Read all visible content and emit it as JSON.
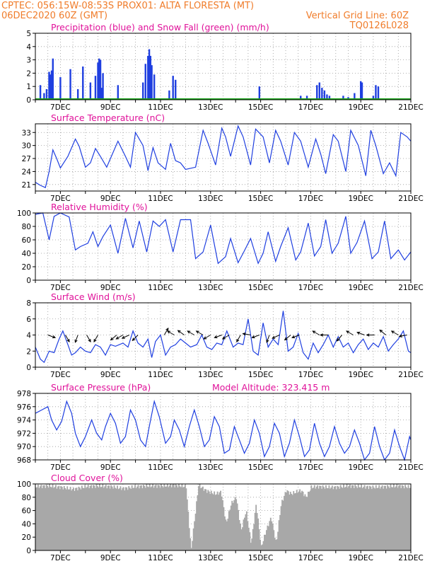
{
  "header": {
    "line1_left": "CPTEC:   056:15W-08:53S   PROX01: ALTA FLORESTA (MT)",
    "line2_left": "06DEC2020 60Z (GMT)",
    "line2_right": "Vertical Grid Line: 60Z",
    "line3_right": "TQ0126L028"
  },
  "colors": {
    "header": "#f07c2a",
    "title": "#e0129a",
    "series": "#1f3fe0",
    "snow": "#1aa31a",
    "cloud": "#a8a8a8",
    "grid": "#9a9a9a"
  },
  "x_ticks": [
    "7DEC",
    "9DEC",
    "11DEC",
    "13DEC",
    "15DEC",
    "17DEC",
    "19DEC",
    "21DEC"
  ],
  "chart_data": [
    {
      "id": "precip",
      "type": "bar",
      "title": "Precipitation (blue) and Snow Fall (green) (mm/h)",
      "ylim": [
        0,
        5
      ],
      "yticks": [
        "0",
        "1",
        "2",
        "3",
        "4",
        "5"
      ],
      "grid": true,
      "x_days": [
        6.2,
        6.35,
        6.45,
        6.55,
        6.6,
        6.65,
        6.7,
        7.0,
        7.4,
        7.7,
        7.9,
        8.2,
        8.4,
        8.5,
        8.55,
        8.6,
        8.65,
        8.7,
        9.3,
        10.3,
        10.4,
        10.5,
        10.55,
        10.6,
        10.65,
        10.75,
        11.35,
        11.5,
        11.6,
        14.95,
        16.6,
        16.85,
        17.25,
        17.35,
        17.45,
        17.55,
        17.65,
        17.75,
        18.3,
        18.5,
        18.75,
        19.0,
        19.05,
        19.5,
        19.6,
        19.7
      ],
      "values": [
        1.1,
        0.5,
        0.8,
        2.1,
        1.9,
        2.2,
        3.1,
        1.7,
        2.3,
        0.8,
        2.5,
        1.3,
        1.8,
        2.8,
        3.1,
        3.0,
        0.9,
        2.0,
        1.1,
        1.3,
        2.7,
        3.3,
        3.8,
        3.3,
        2.6,
        1.9,
        0.7,
        1.8,
        1.5,
        1.0,
        0.3,
        0.3,
        1.1,
        1.3,
        0.9,
        0.7,
        0.4,
        0.3,
        0.3,
        0.2,
        0.5,
        1.4,
        1.3,
        0.3,
        1.1,
        1.0
      ],
      "snow_values": "0 throughout"
    },
    {
      "id": "temperature",
      "type": "line",
      "title": "Surface Temperature (nC)",
      "ylim": [
        19.5,
        35
      ],
      "yticks": [
        "21",
        "24",
        "27",
        "30",
        "33"
      ],
      "grid": true,
      "x_days": [
        6.0,
        6.2,
        6.4,
        6.55,
        6.7,
        6.85,
        7.0,
        7.3,
        7.6,
        7.75,
        8.0,
        8.2,
        8.4,
        8.6,
        8.85,
        9.0,
        9.3,
        9.6,
        9.8,
        10.0,
        10.3,
        10.5,
        10.7,
        10.9,
        11.2,
        11.4,
        11.6,
        11.8,
        12.0,
        12.4,
        12.7,
        12.9,
        13.2,
        13.45,
        13.6,
        13.8,
        14.1,
        14.3,
        14.6,
        14.8,
        15.1,
        15.35,
        15.6,
        15.8,
        16.1,
        16.35,
        16.6,
        16.9,
        17.2,
        17.4,
        17.6,
        17.9,
        18.1,
        18.4,
        18.6,
        18.9,
        19.2,
        19.4,
        19.6,
        19.9,
        20.15,
        20.4,
        20.6,
        20.85,
        21.0
      ],
      "values": [
        21.5,
        20.8,
        20.3,
        24.0,
        29.0,
        27.0,
        24.8,
        27.5,
        31.5,
        29.8,
        25.0,
        26.0,
        29.3,
        27.5,
        25.0,
        27.0,
        31.0,
        27.5,
        25.0,
        33.0,
        30.0,
        24.2,
        29.5,
        26.0,
        24.5,
        30.5,
        26.5,
        26.0,
        24.5,
        25.0,
        33.5,
        30.5,
        25.5,
        34.0,
        32.0,
        27.5,
        34.5,
        32.0,
        25.5,
        33.8,
        32.0,
        26.0,
        33.5,
        31.0,
        25.5,
        33.0,
        31.0,
        25.0,
        31.5,
        28.0,
        23.5,
        32.5,
        31.0,
        24.0,
        33.5,
        30.0,
        23.0,
        33.5,
        30.0,
        23.5,
        26.0,
        23.0,
        33.0,
        32.0,
        31.0
      ]
    },
    {
      "id": "humidity",
      "type": "line",
      "title": "Relative Humidity (%)",
      "ylim": [
        0,
        100
      ],
      "yticks": [
        "0",
        "20",
        "40",
        "60",
        "80",
        "100"
      ],
      "grid": true,
      "x_days": [
        6.0,
        6.3,
        6.55,
        6.75,
        7.0,
        7.35,
        7.6,
        7.8,
        8.1,
        8.3,
        8.5,
        8.7,
        9.0,
        9.3,
        9.6,
        9.9,
        10.15,
        10.45,
        10.7,
        10.95,
        11.2,
        11.5,
        11.8,
        12.2,
        12.4,
        12.7,
        13.0,
        13.3,
        13.6,
        13.8,
        14.1,
        14.3,
        14.6,
        14.9,
        15.1,
        15.3,
        15.6,
        15.8,
        16.1,
        16.4,
        16.6,
        16.9,
        17.15,
        17.4,
        17.6,
        17.85,
        18.1,
        18.4,
        18.6,
        18.85,
        19.15,
        19.45,
        19.7,
        19.95,
        20.2,
        20.5,
        20.75,
        21.0
      ],
      "values": [
        98.0,
        100.0,
        60.0,
        95.0,
        100.0,
        94.0,
        45.0,
        50.0,
        55.0,
        72.0,
        50.0,
        65.0,
        82.0,
        40.0,
        92.0,
        48.0,
        88.0,
        42.0,
        88.0,
        80.0,
        90.0,
        42.0,
        90.0,
        90.0,
        32.0,
        42.0,
        82.0,
        25.0,
        35.0,
        62.0,
        26.0,
        40.0,
        62.0,
        25.0,
        40.0,
        72.0,
        28.0,
        50.0,
        78.0,
        30.0,
        42.0,
        85.0,
        36.0,
        50.0,
        90.0,
        40.0,
        55.0,
        95.0,
        40.0,
        56.0,
        88.0,
        32.0,
        42.0,
        88.0,
        32.0,
        45.0,
        30.0,
        42.0
      ]
    },
    {
      "id": "wind",
      "type": "line",
      "title": "Surface Wind (m/s)",
      "ylim": [
        0,
        8
      ],
      "yticks": [
        "0",
        "2",
        "4",
        "6",
        "8"
      ],
      "grid": true,
      "x_days": [
        6.0,
        6.2,
        6.35,
        6.55,
        6.75,
        6.95,
        7.1,
        7.3,
        7.45,
        7.6,
        7.8,
        8.0,
        8.2,
        8.4,
        8.6,
        8.8,
        9.0,
        9.2,
        9.5,
        9.7,
        9.9,
        10.1,
        10.3,
        10.5,
        10.65,
        10.8,
        11.0,
        11.2,
        11.4,
        11.6,
        11.8,
        12.0,
        12.2,
        12.45,
        12.65,
        12.85,
        13.05,
        13.25,
        13.45,
        13.65,
        13.9,
        14.1,
        14.3,
        14.5,
        14.7,
        14.9,
        15.1,
        15.3,
        15.5,
        15.7,
        15.9,
        16.1,
        16.3,
        16.5,
        16.7,
        16.9,
        17.1,
        17.3,
        17.5,
        17.7,
        17.9,
        18.1,
        18.3,
        18.5,
        18.7,
        18.9,
        19.1,
        19.3,
        19.5,
        19.7,
        19.9,
        20.1,
        20.3,
        20.5,
        20.7,
        20.9,
        21.0
      ],
      "values": [
        2.5,
        1.0,
        0.6,
        2.0,
        1.8,
        3.5,
        4.5,
        2.8,
        1.5,
        1.8,
        2.5,
        2.0,
        1.8,
        2.8,
        2.5,
        1.5,
        2.8,
        2.6,
        3.0,
        2.5,
        4.5,
        3.0,
        2.5,
        3.5,
        1.2,
        3.2,
        4.0,
        1.5,
        2.5,
        2.8,
        3.5,
        3.0,
        2.5,
        2.8,
        4.0,
        2.5,
        2.2,
        3.0,
        2.8,
        4.5,
        2.5,
        3.0,
        2.8,
        6.0,
        2.0,
        1.5,
        5.5,
        2.5,
        3.5,
        2.8,
        7.0,
        2.0,
        2.5,
        4.2,
        1.8,
        1.0,
        3.0,
        1.8,
        2.8,
        4.0,
        2.5,
        3.8,
        2.5,
        3.0,
        1.8,
        2.8,
        3.5,
        2.2,
        3.0,
        2.5,
        3.8,
        2.0,
        2.8,
        3.5,
        4.5,
        2.0,
        1.8
      ],
      "vectors": [
        {
          "day": 6.5,
          "dir": 110
        },
        {
          "day": 7.2,
          "dir": 150
        },
        {
          "day": 7.7,
          "dir": 200
        },
        {
          "day": 8.05,
          "dir": 150
        },
        {
          "day": 8.5,
          "dir": 210
        },
        {
          "day": 9.25,
          "dir": 230
        },
        {
          "day": 9.5,
          "dir": 240
        },
        {
          "day": 9.75,
          "dir": 245
        },
        {
          "day": 10.1,
          "dir": 225
        },
        {
          "day": 11.15,
          "dir": 30
        },
        {
          "day": 11.55,
          "dir": 300
        },
        {
          "day": 11.95,
          "dir": 305
        },
        {
          "day": 12.35,
          "dir": 300
        },
        {
          "day": 12.7,
          "dir": 300
        },
        {
          "day": 13.0,
          "dir": 240
        },
        {
          "day": 13.45,
          "dir": 250
        },
        {
          "day": 13.75,
          "dir": 240
        },
        {
          "day": 14.2,
          "dir": 210
        },
        {
          "day": 14.6,
          "dir": 280
        },
        {
          "day": 14.95,
          "dir": 250
        },
        {
          "day": 15.35,
          "dir": 200
        },
        {
          "day": 15.75,
          "dir": 245
        },
        {
          "day": 16.2,
          "dir": 230
        },
        {
          "day": 16.55,
          "dir": 250
        },
        {
          "day": 17.35,
          "dir": 300
        },
        {
          "day": 17.7,
          "dir": 270
        },
        {
          "day": 18.25,
          "dir": 220
        },
        {
          "day": 18.7,
          "dir": 300
        },
        {
          "day": 19.15,
          "dir": 290
        },
        {
          "day": 19.55,
          "dir": 270
        },
        {
          "day": 20.0,
          "dir": 310
        },
        {
          "day": 20.5,
          "dir": 300
        },
        {
          "day": 20.85,
          "dir": 260
        }
      ]
    },
    {
      "id": "pressure",
      "type": "line",
      "title": "Surface Pressure (hPa)",
      "subtitle": "Model Altitude: 323.415  m",
      "ylim": [
        968,
        978
      ],
      "yticks": [
        "968",
        "970",
        "972",
        "974",
        "976",
        "978"
      ],
      "grid": true,
      "x_days": [
        6.0,
        6.25,
        6.5,
        6.65,
        6.85,
        7.05,
        7.25,
        7.45,
        7.6,
        7.8,
        8.0,
        8.25,
        8.45,
        8.65,
        8.8,
        9.0,
        9.2,
        9.4,
        9.6,
        9.8,
        10.0,
        10.2,
        10.4,
        10.55,
        10.75,
        10.95,
        11.2,
        11.4,
        11.55,
        11.75,
        11.95,
        12.15,
        12.35,
        12.55,
        12.75,
        12.95,
        13.15,
        13.35,
        13.55,
        13.75,
        13.95,
        14.15,
        14.35,
        14.55,
        14.75,
        14.95,
        15.15,
        15.35,
        15.55,
        15.75,
        15.95,
        16.15,
        16.35,
        16.55,
        16.75,
        16.95,
        17.15,
        17.35,
        17.55,
        17.75,
        17.95,
        18.15,
        18.35,
        18.55,
        18.75,
        18.95,
        19.15,
        19.35,
        19.55,
        19.75,
        19.95,
        20.15,
        20.35,
        20.55,
        20.75,
        20.95,
        21.0
      ],
      "values": [
        975.0,
        975.5,
        976.0,
        974.0,
        972.5,
        973.8,
        976.8,
        975.0,
        972.0,
        970.0,
        971.5,
        974.0,
        972.0,
        971.0,
        973.0,
        975.0,
        973.5,
        970.5,
        971.5,
        975.5,
        974.0,
        971.0,
        970.0,
        973.0,
        976.8,
        974.5,
        970.5,
        971.5,
        974.0,
        972.5,
        970.0,
        973.0,
        975.5,
        973.0,
        970.0,
        971.0,
        974.5,
        973.0,
        969.0,
        969.5,
        973.0,
        971.0,
        969.0,
        970.5,
        974.0,
        972.0,
        968.5,
        970.0,
        973.5,
        972.0,
        968.5,
        970.5,
        974.0,
        971.5,
        968.5,
        969.5,
        973.5,
        970.5,
        968.5,
        970.0,
        973.0,
        970.5,
        969.0,
        970.0,
        972.5,
        970.5,
        968.0,
        969.0,
        973.0,
        970.0,
        968.0,
        969.0,
        972.5,
        970.0,
        968.0,
        971.5,
        971.0
      ]
    },
    {
      "id": "cloud",
      "type": "bar",
      "title": "Cloud Cover (%)",
      "ylim": [
        0,
        100
      ],
      "yticks": [
        "0",
        "20",
        "40",
        "60",
        "80",
        "100"
      ],
      "grid": true,
      "x_days": [
        6.0,
        6.5,
        7.0,
        7.5,
        8.0,
        8.5,
        9.0,
        9.5,
        10.0,
        10.5,
        11.0,
        11.5,
        11.8,
        12.0,
        12.2,
        12.5,
        12.8,
        13.0,
        13.2,
        13.4,
        13.6,
        13.8,
        14.0,
        14.2,
        14.4,
        14.6,
        14.8,
        15.0,
        15.2,
        15.4,
        15.6,
        15.8,
        16.0,
        16.2,
        16.4,
        16.6,
        16.8,
        17.0,
        17.3,
        17.6,
        18.0,
        18.5,
        19.0,
        19.5,
        20.0,
        20.5,
        21.0
      ],
      "values": [
        96,
        97,
        95,
        92,
        96,
        97,
        96,
        93,
        96,
        97,
        97,
        98,
        97,
        96,
        1,
        98,
        90,
        87,
        85,
        88,
        40,
        70,
        80,
        30,
        60,
        10,
        70,
        5,
        30,
        50,
        10,
        70,
        90,
        85,
        88,
        90,
        80,
        95,
        96,
        95,
        95,
        97,
        96,
        95,
        96,
        97,
        95
      ]
    }
  ]
}
